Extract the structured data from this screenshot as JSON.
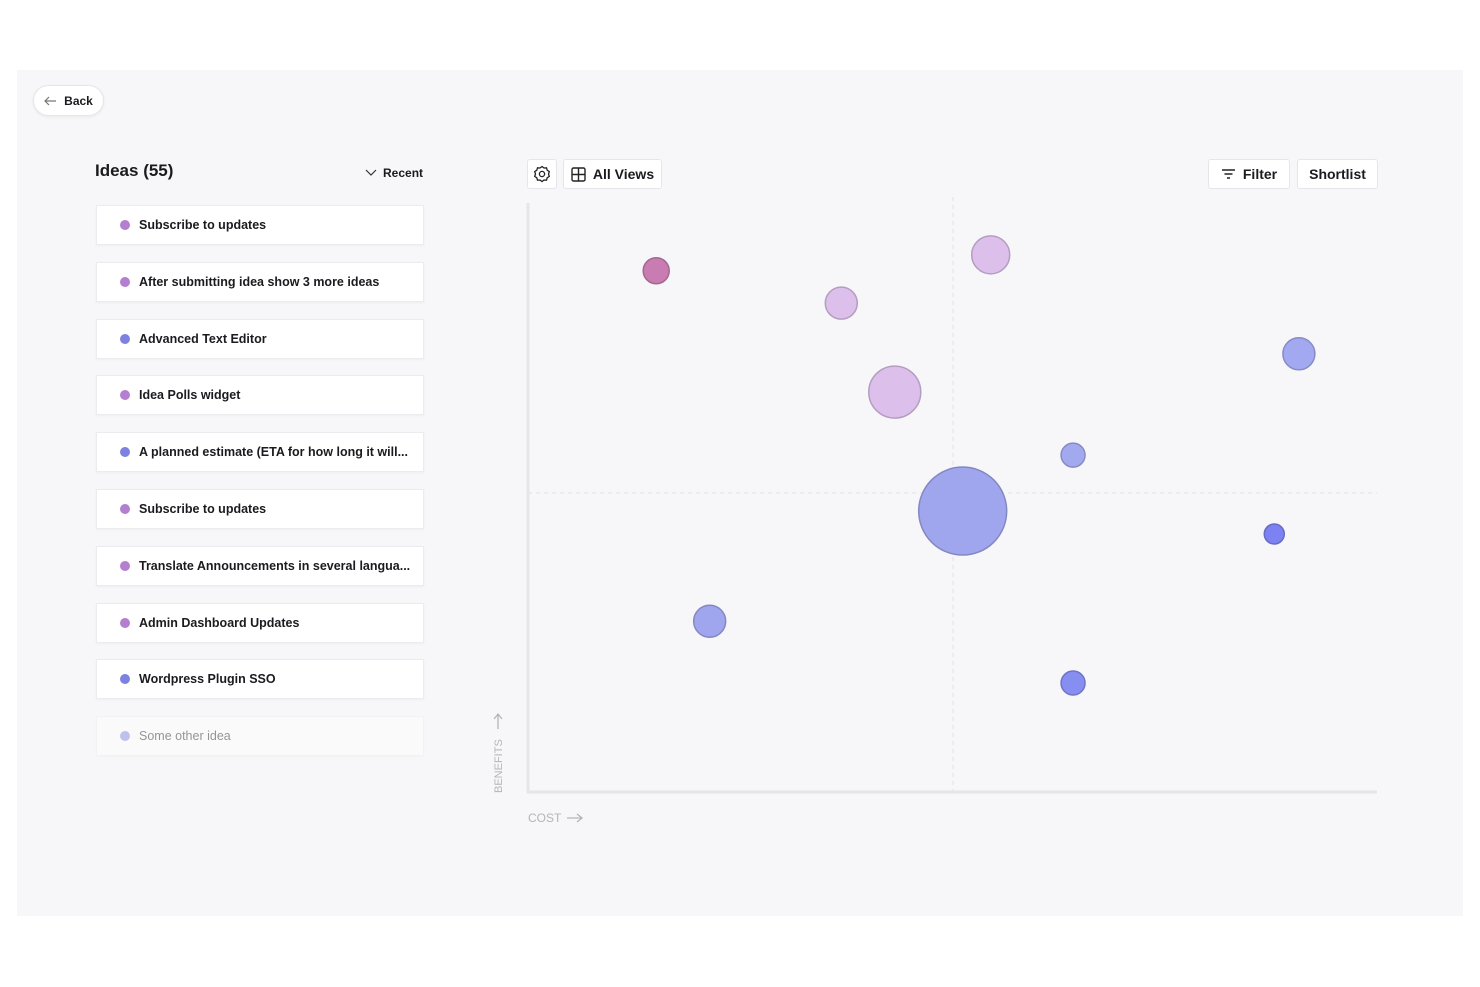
{
  "header": {
    "back": "Back"
  },
  "ideas": {
    "title": "Ideas (55)",
    "sort": "Recent",
    "items": [
      {
        "label": "Subscribe to updates",
        "color": "#b47fd0"
      },
      {
        "label": "After submitting idea show 3 more ideas",
        "color": "#b47fd0"
      },
      {
        "label": "Advanced Text Editor",
        "color": "#7d82e0"
      },
      {
        "label": "Idea Polls widget",
        "color": "#b47fd0"
      },
      {
        "label": "A planned estimate (ETA for how long it will...",
        "color": "#7d82e0"
      },
      {
        "label": "Subscribe to updates",
        "color": "#b47fd0"
      },
      {
        "label": "Translate Announcements in several langua...",
        "color": "#b47fd0"
      },
      {
        "label": "Admin Dashboard Updates",
        "color": "#b47fd0"
      },
      {
        "label": "Wordpress Plugin SSO",
        "color": "#7d82e0"
      },
      {
        "label": "Some other idea",
        "color": "#7d82e0"
      }
    ]
  },
  "toolbar": {
    "views": "All Views",
    "filter": "Filter",
    "shortlist": "Shortlist"
  },
  "chart_data": {
    "type": "scatter",
    "xlabel": "COST",
    "ylabel": "BENEFITS",
    "xlim": [
      0,
      100
    ],
    "ylim": [
      0,
      100
    ],
    "x": [
      15.1,
      54.5,
      36.9,
      90.8,
      43.2,
      64.2,
      51.2,
      87.9,
      21.4,
      64.2
    ],
    "values": [
      88.5,
      91.2,
      83,
      74.4,
      67.9,
      57.2,
      47.7,
      43.8,
      29,
      18.5
    ],
    "sizes": [
      13,
      19,
      16,
      16,
      26,
      12,
      44,
      10,
      16,
      12
    ],
    "colors": [
      "#c97cb2",
      "#dcc0eb",
      "#dcc0eb",
      "#a3a9f1",
      "#dcc0eb",
      "#a3a9ee",
      "#a0a6ed",
      "#7c82f2",
      "#a0a6ed",
      "#878ef2"
    ]
  }
}
